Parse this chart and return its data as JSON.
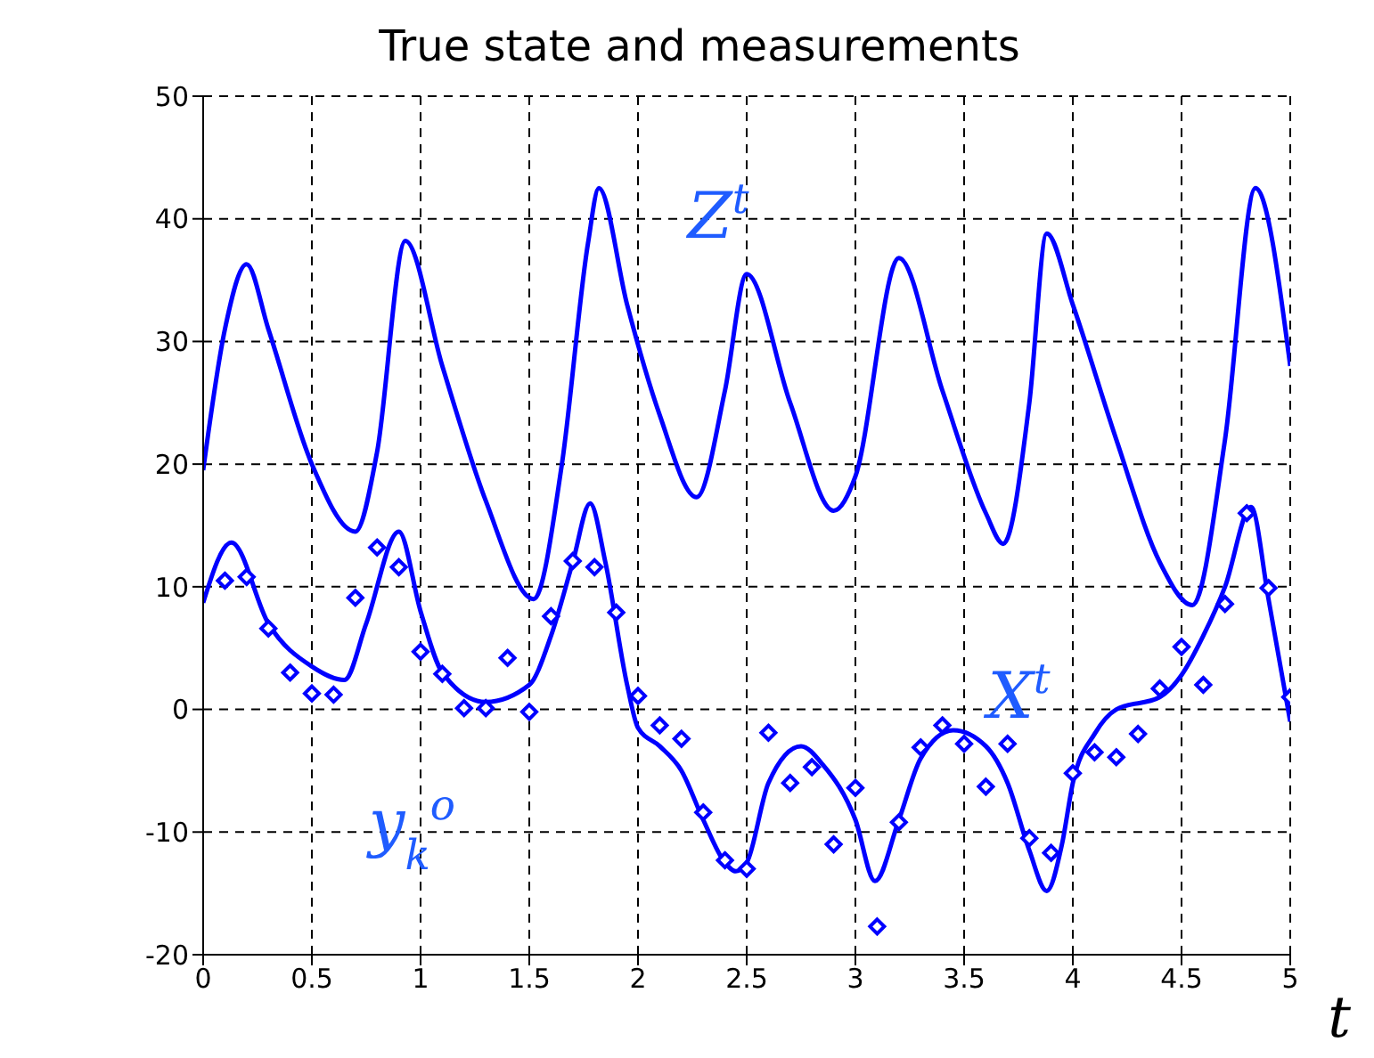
{
  "chart_data": {
    "type": "line",
    "title": "True state and measurements",
    "xlabel": "t",
    "xlim": [
      0,
      5
    ],
    "xticks": [
      0,
      0.5,
      1,
      1.5,
      2,
      2.5,
      3,
      3.5,
      4,
      4.5,
      5
    ],
    "ylim": [
      -20,
      50
    ],
    "yticks": [
      -20,
      -10,
      0,
      10,
      20,
      30,
      40,
      50
    ],
    "grid": true,
    "line_style": "solid",
    "series": [
      {
        "name": "Z$^{t}$",
        "color": "#0000ff",
        "marker": "none",
        "x": [
          0,
          0.1,
          0.2,
          0.3,
          0.5,
          0.7,
          0.8,
          0.93,
          1.1,
          1.3,
          1.52,
          1.65,
          1.77,
          1.82,
          1.95,
          2.1,
          2.27,
          2.4,
          2.5,
          2.7,
          2.9,
          3.0,
          3.2,
          3.4,
          3.6,
          3.68,
          3.8,
          3.88,
          4.0,
          4.2,
          4.4,
          4.55,
          4.7,
          4.84,
          5.0
        ],
        "values": [
          19.5,
          31,
          36.3,
          31,
          20,
          14.5,
          21,
          38.2,
          28,
          17,
          9,
          20,
          38,
          42.5,
          33,
          24,
          17.3,
          26,
          35.5,
          25,
          16.2,
          19,
          36.8,
          26,
          16,
          13.5,
          25,
          38.8,
          33,
          22,
          12,
          8.5,
          22,
          42.5,
          28
        ]
      },
      {
        "name": "X$^{t}$",
        "color": "#0000ff",
        "marker": "none",
        "x": [
          0,
          0.13,
          0.3,
          0.5,
          0.65,
          0.75,
          0.9,
          1.0,
          1.1,
          1.3,
          1.5,
          1.6,
          1.7,
          1.78,
          1.85,
          1.95,
          2.0,
          2.1,
          2.2,
          2.3,
          2.4,
          2.45,
          2.5,
          2.6,
          2.75,
          2.85,
          3.0,
          3.09,
          3.2,
          3.3,
          3.45,
          3.6,
          3.7,
          3.8,
          3.88,
          3.95,
          4.0,
          4.1,
          4.2,
          4.4,
          4.5,
          4.6,
          4.7,
          4.82,
          4.9,
          5.0
        ],
        "values": [
          8.7,
          13.6,
          7,
          3.5,
          2.4,
          7,
          14.5,
          8,
          3,
          0.6,
          2,
          6,
          12,
          16.8,
          12,
          2,
          -1.5,
          -3,
          -5,
          -9,
          -12.5,
          -13.2,
          -12.5,
          -6,
          -3,
          -4.5,
          -9,
          -14,
          -9,
          -4,
          -1.7,
          -3,
          -6,
          -11.5,
          -14.8,
          -11,
          -6,
          -2,
          0,
          1,
          2.8,
          6,
          10,
          16.5,
          9,
          -1
        ]
      },
      {
        "name": "y$_{k}$$^{o}$",
        "type": "scatter",
        "color": "#0000ff",
        "marker": "diamond",
        "x": [
          0.1,
          0.2,
          0.3,
          0.4,
          0.5,
          0.6,
          0.7,
          0.8,
          0.9,
          1.0,
          1.1,
          1.2,
          1.3,
          1.4,
          1.5,
          1.6,
          1.7,
          1.8,
          1.9,
          2.0,
          2.1,
          2.2,
          2.3,
          2.4,
          2.5,
          2.6,
          2.7,
          2.8,
          2.9,
          3.0,
          3.1,
          3.2,
          3.3,
          3.4,
          3.5,
          3.6,
          3.7,
          3.8,
          3.9,
          4.0,
          4.1,
          4.2,
          4.3,
          4.4,
          4.5,
          4.6,
          4.7,
          4.8,
          4.9,
          5.0
        ],
        "values": [
          10.5,
          10.8,
          6.6,
          3.0,
          1.3,
          1.2,
          9.1,
          13.2,
          11.6,
          4.7,
          2.9,
          0.1,
          0.1,
          4.2,
          -0.2,
          7.6,
          12.1,
          11.6,
          7.9,
          1.1,
          -1.3,
          -2.4,
          -8.4,
          -12.3,
          -13.0,
          -1.9,
          -6.0,
          -4.7,
          -11.0,
          -6.4,
          -17.7,
          -9.2,
          -3.1,
          -1.3,
          -2.8,
          -6.3,
          -2.8,
          -10.5,
          -11.7,
          -5.2,
          -3.5,
          -3.9,
          -2.0,
          1.7,
          5.1,
          2.0,
          8.6,
          16.0,
          9.9,
          1.0
        ]
      }
    ]
  }
}
